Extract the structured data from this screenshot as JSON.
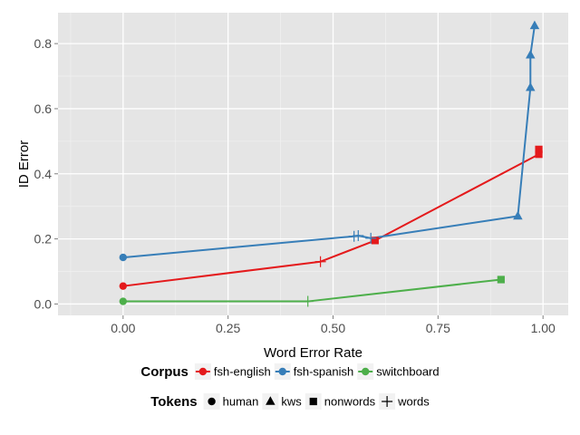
{
  "chart_data": {
    "type": "line",
    "title": "",
    "xlabel": "Word Error Rate",
    "ylabel": "ID Error",
    "xlim": [
      -0.155,
      1.06
    ],
    "ylim": [
      -0.035,
      0.895
    ],
    "x_ticks": [
      0.0,
      0.25,
      0.5,
      0.75,
      1.0
    ],
    "x_tick_labels": [
      "0.00",
      "0.25",
      "0.50",
      "0.75",
      "1.00"
    ],
    "y_ticks": [
      0.0,
      0.2,
      0.4,
      0.6,
      0.8
    ],
    "y_tick_labels": [
      "0.0",
      "0.2",
      "0.4",
      "0.6",
      "0.8"
    ],
    "grid": true,
    "legend_placement": "bottom",
    "series": [
      {
        "name": "fsh-english",
        "color": "#e41a1c",
        "points": [
          {
            "x": 0.0,
            "y": 0.055,
            "token": "human"
          },
          {
            "x": 0.47,
            "y": 0.13,
            "token": "words"
          },
          {
            "x": 0.6,
            "y": 0.195,
            "token": "nonwords"
          },
          {
            "x": 0.99,
            "y": 0.46,
            "token": "nonwords"
          },
          {
            "x": 0.99,
            "y": 0.475,
            "token": "nonwords"
          }
        ]
      },
      {
        "name": "fsh-spanish",
        "color": "#377eb8",
        "points": [
          {
            "x": 0.0,
            "y": 0.143,
            "token": "human"
          },
          {
            "x": 0.55,
            "y": 0.208,
            "token": "words"
          },
          {
            "x": 0.56,
            "y": 0.21,
            "token": "words"
          },
          {
            "x": 0.59,
            "y": 0.202,
            "token": "words"
          },
          {
            "x": 0.94,
            "y": 0.27,
            "token": "kws"
          },
          {
            "x": 0.97,
            "y": 0.665,
            "token": "kws"
          },
          {
            "x": 0.97,
            "y": 0.765,
            "token": "kws"
          },
          {
            "x": 0.98,
            "y": 0.855,
            "token": "kws"
          }
        ]
      },
      {
        "name": "switchboard",
        "color": "#4daf4a",
        "points": [
          {
            "x": 0.0,
            "y": 0.008,
            "token": "human"
          },
          {
            "x": 0.44,
            "y": 0.008,
            "token": "words"
          },
          {
            "x": 0.9,
            "y": 0.075,
            "token": "nonwords"
          }
        ]
      }
    ],
    "legends": [
      {
        "title": "Corpus",
        "entries": [
          "fsh-english",
          "fsh-spanish",
          "switchboard"
        ]
      },
      {
        "title": "Tokens",
        "entries": [
          "human",
          "kws",
          "nonwords",
          "words"
        ]
      }
    ]
  },
  "colors": {
    "panel_bg": "#e5e5e5",
    "grid_major": "#ffffff",
    "grid_minor": "#f0f0f0",
    "tick_text": "#4d4d4d",
    "text": "#000000"
  }
}
